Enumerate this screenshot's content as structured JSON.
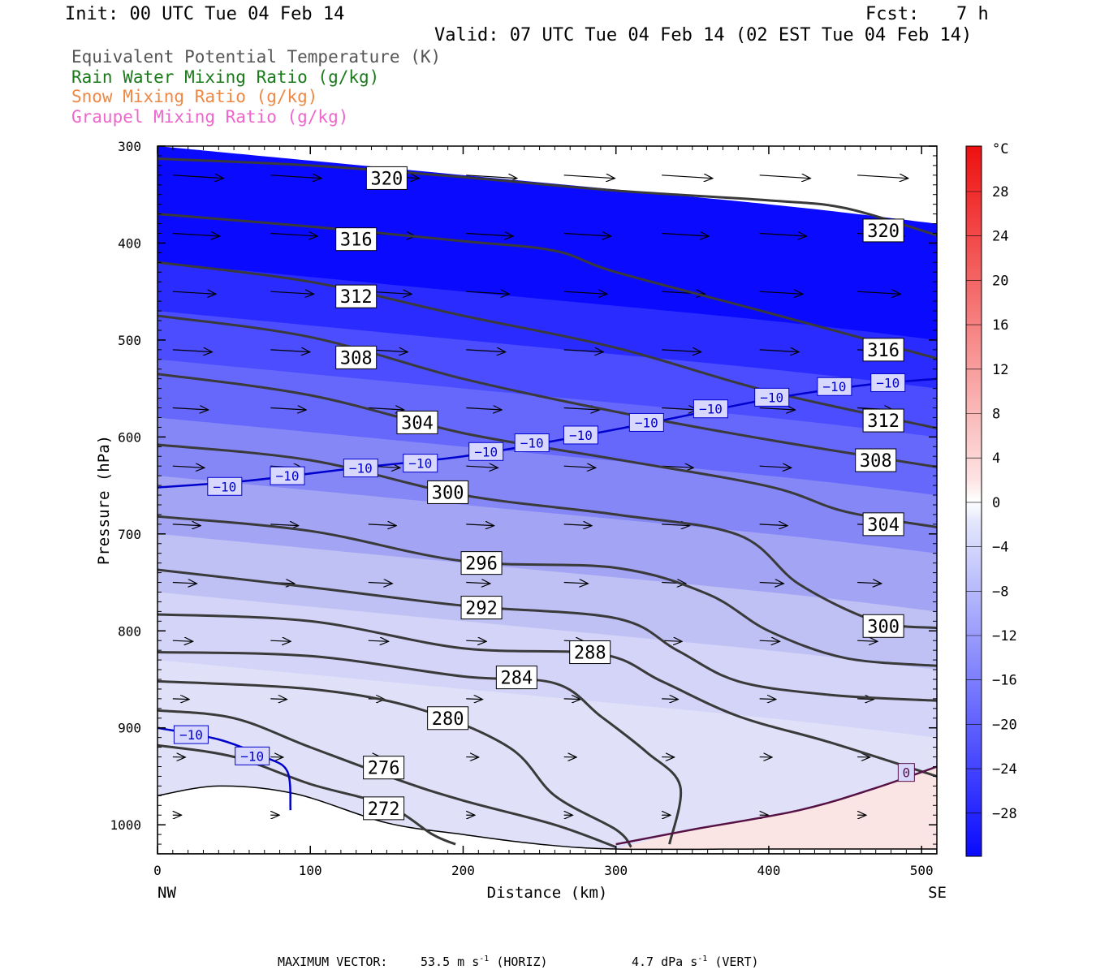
{
  "header": {
    "init": "Init: 00 UTC Tue 04 Feb 14",
    "fcst_label": "Fcst:",
    "fcst_value": "7 h",
    "valid": "Valid: 07 UTC Tue 04 Feb 14 (02 EST Tue 04 Feb 14)"
  },
  "legend": [
    {
      "label": "Equivalent Potential Temperature (K)",
      "color": "#555555"
    },
    {
      "label": "Rain Water Mixing Ratio (g/kg)",
      "color": "#1a7a1a"
    },
    {
      "label": "Snow Mixing Ratio (g/kg)",
      "color": "#ee8844"
    },
    {
      "label": "Graupel Mixing Ratio (g/kg)",
      "color": "#ee66cc"
    }
  ],
  "footer": {
    "max_vector_label": "MAXIMUM VECTOR:",
    "horiz_value": "53.5",
    "horiz_unit": "m s",
    "horiz_tag": "(HORIZ)",
    "vert_value": "4.7",
    "vert_unit": "dPa s",
    "vert_tag": "(VERT)",
    "exponent": "-1"
  },
  "chart_data": {
    "type": "cross-section",
    "xlabel": "Distance (km)",
    "ylabel": "Pressure (hPa)",
    "xlim": [
      0,
      510
    ],
    "ylim": [
      1030,
      300
    ],
    "x_ticks": [
      0,
      100,
      200,
      300,
      400,
      500
    ],
    "y_ticks": [
      300,
      400,
      500,
      600,
      700,
      800,
      900,
      1000
    ],
    "x_end_labels": {
      "left": "NW",
      "right": "SE"
    },
    "colorbar": {
      "unit": "°C",
      "labels": [
        28,
        24,
        20,
        16,
        12,
        8,
        4,
        0,
        -4,
        -8,
        -12,
        -16,
        -20,
        -24,
        -28
      ]
    },
    "theta_e_contours": [
      {
        "value": 320,
        "labels": [
          [
            150,
            333
          ],
          [
            475,
            387
          ]
        ],
        "points": [
          [
            0,
            313
          ],
          [
            100,
            320
          ],
          [
            200,
            332
          ],
          [
            300,
            346
          ],
          [
            400,
            356
          ],
          [
            450,
            364
          ],
          [
            510,
            392
          ]
        ]
      },
      {
        "value": 316,
        "labels": [
          [
            130,
            396
          ],
          [
            475,
            510
          ]
        ],
        "points": [
          [
            0,
            370
          ],
          [
            100,
            383
          ],
          [
            200,
            398
          ],
          [
            260,
            408
          ],
          [
            300,
            430
          ],
          [
            400,
            472
          ],
          [
            510,
            519
          ]
        ]
      },
      {
        "value": 312,
        "labels": [
          [
            130,
            455
          ],
          [
            475,
            583
          ]
        ],
        "points": [
          [
            0,
            420
          ],
          [
            100,
            440
          ],
          [
            200,
            475
          ],
          [
            300,
            508
          ],
          [
            400,
            553
          ],
          [
            510,
            591
          ]
        ]
      },
      {
        "value": 308,
        "labels": [
          [
            130,
            518
          ],
          [
            470,
            624
          ]
        ],
        "points": [
          [
            0,
            475
          ],
          [
            100,
            497
          ],
          [
            200,
            540
          ],
          [
            300,
            574
          ],
          [
            400,
            603
          ],
          [
            510,
            631
          ]
        ]
      },
      {
        "value": 304,
        "labels": [
          [
            170,
            585
          ],
          [
            475,
            690
          ]
        ],
        "points": [
          [
            0,
            535
          ],
          [
            100,
            557
          ],
          [
            200,
            596
          ],
          [
            300,
            623
          ],
          [
            400,
            651
          ],
          [
            450,
            677
          ],
          [
            510,
            693
          ]
        ]
      },
      {
        "value": 300,
        "labels": [
          [
            190,
            657
          ],
          [
            475,
            795
          ]
        ],
        "points": [
          [
            0,
            608
          ],
          [
            100,
            624
          ],
          [
            200,
            660
          ],
          [
            300,
            680
          ],
          [
            380,
            701
          ],
          [
            420,
            752
          ],
          [
            470,
            790
          ],
          [
            510,
            797
          ]
        ]
      },
      {
        "value": 296,
        "labels": [
          [
            212,
            730
          ]
        ],
        "points": [
          [
            0,
            682
          ],
          [
            100,
            697
          ],
          [
            200,
            728
          ],
          [
            300,
            735
          ],
          [
            360,
            762
          ],
          [
            400,
            800
          ],
          [
            450,
            828
          ],
          [
            510,
            836
          ]
        ]
      },
      {
        "value": 292,
        "labels": [
          [
            212,
            776
          ]
        ],
        "points": [
          [
            0,
            737
          ],
          [
            100,
            755
          ],
          [
            200,
            774
          ],
          [
            300,
            787
          ],
          [
            340,
            820
          ],
          [
            380,
            852
          ],
          [
            440,
            866
          ],
          [
            510,
            872
          ]
        ]
      },
      {
        "value": 288,
        "labels": [
          [
            283,
            822
          ]
        ],
        "points": [
          [
            0,
            783
          ],
          [
            100,
            790
          ],
          [
            200,
            818
          ],
          [
            290,
            824
          ],
          [
            330,
            852
          ],
          [
            380,
            888
          ],
          [
            440,
            915
          ],
          [
            510,
            950
          ]
        ]
      },
      {
        "value": 284,
        "labels": [
          [
            235,
            848
          ]
        ],
        "points": [
          [
            0,
            822
          ],
          [
            100,
            826
          ],
          [
            200,
            847
          ],
          [
            260,
            854
          ],
          [
            290,
            888
          ],
          [
            320,
            925
          ],
          [
            342,
            960
          ],
          [
            335,
            1020
          ]
        ]
      },
      {
        "value": 280,
        "labels": [
          [
            190,
            890
          ]
        ],
        "points": [
          [
            0,
            852
          ],
          [
            100,
            860
          ],
          [
            170,
            880
          ],
          [
            230,
            920
          ],
          [
            260,
            970
          ],
          [
            300,
            1005
          ],
          [
            310,
            1023
          ]
        ]
      },
      {
        "value": 276,
        "labels": [
          [
            148,
            941
          ]
        ],
        "points": [
          [
            0,
            882
          ],
          [
            50,
            890
          ],
          [
            100,
            920
          ],
          [
            160,
            955
          ],
          [
            200,
            975
          ],
          [
            260,
            1000
          ],
          [
            300,
            1023
          ]
        ]
      },
      {
        "value": 272,
        "labels": [
          [
            148,
            983
          ]
        ],
        "points": [
          [
            0,
            918
          ],
          [
            50,
            930
          ],
          [
            100,
            958
          ],
          [
            150,
            980
          ],
          [
            180,
            1010
          ],
          [
            195,
            1020
          ]
        ]
      }
    ],
    "temp_contours": [
      {
        "value": -10,
        "color": "#0000cc",
        "labels": [
          [
            44,
            651
          ],
          [
            85,
            640
          ],
          [
            133,
            632
          ],
          [
            172,
            627
          ],
          [
            215,
            615
          ],
          [
            245,
            606
          ],
          [
            277,
            598
          ],
          [
            320,
            585
          ],
          [
            362,
            571
          ],
          [
            402,
            559
          ],
          [
            443,
            548
          ],
          [
            478,
            544
          ]
        ],
        "points": [
          [
            0,
            652
          ],
          [
            60,
            645
          ],
          [
            130,
            632
          ],
          [
            200,
            620
          ],
          [
            260,
            604
          ],
          [
            330,
            583
          ],
          [
            400,
            561
          ],
          [
            460,
            547
          ],
          [
            510,
            540
          ]
        ]
      },
      {
        "value": -10,
        "color": "#0000cc",
        "labels": [
          [
            22,
            907
          ],
          [
            62,
            929
          ]
        ],
        "points": [
          [
            0,
            900
          ],
          [
            40,
            912
          ],
          [
            70,
            930
          ],
          [
            85,
            945
          ],
          [
            87,
            985
          ]
        ]
      },
      {
        "value": 0,
        "color": "#551144",
        "labels": [
          [
            490,
            946
          ]
        ],
        "points": [
          [
            300,
            1020
          ],
          [
            350,
            1005
          ],
          [
            420,
            985
          ],
          [
            470,
            962
          ],
          [
            510,
            940
          ]
        ]
      }
    ],
    "terrain": [
      [
        0,
        970
      ],
      [
        40,
        960
      ],
      [
        90,
        968
      ],
      [
        150,
        998
      ],
      [
        200,
        1010
      ],
      [
        250,
        1020
      ],
      [
        300,
        1025
      ],
      [
        400,
        1025
      ],
      [
        510,
        1025
      ]
    ]
  }
}
